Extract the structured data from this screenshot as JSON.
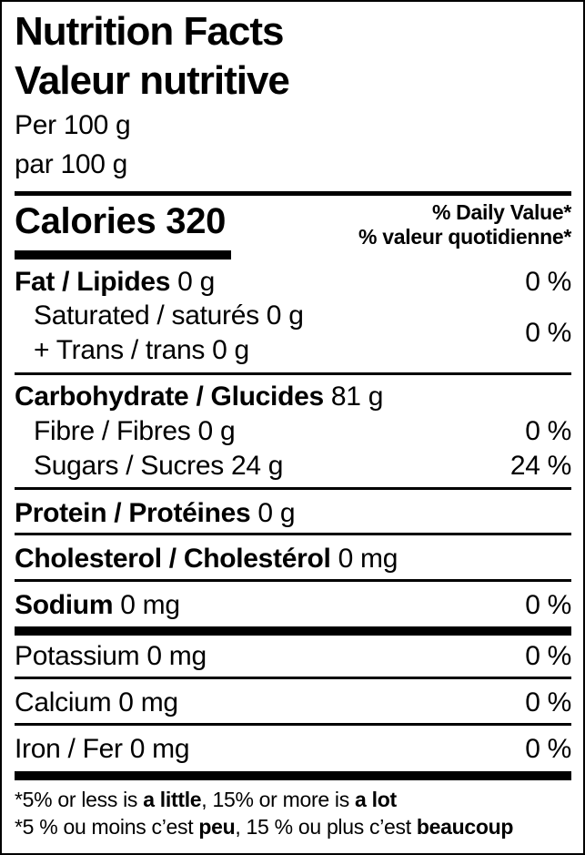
{
  "colors": {
    "text": "#000000",
    "background": "#ffffff"
  },
  "title": {
    "en": "Nutrition Facts",
    "fr": "Valeur nutritive"
  },
  "serving": {
    "en": "Per 100 g",
    "fr": "par 100 g"
  },
  "calories": {
    "text": "Calories 320"
  },
  "dv_header": {
    "en": "% Daily Value*",
    "fr": "% valeur quotidienne*"
  },
  "nutrients": {
    "fat": {
      "name": "Fat / Lipides",
      "amount": "0 g",
      "dv": "0 %"
    },
    "saturated_trans": {
      "line1": "Saturated / saturés 0 g",
      "line2": "+ Trans / trans 0 g",
      "dv": "0 %"
    },
    "carbohydrate": {
      "name": "Carbohydrate / Glucides",
      "amount": "81 g"
    },
    "fibre": {
      "name": "Fibre / Fibres 0 g",
      "dv": "0 %"
    },
    "sugars": {
      "name": "Sugars / Sucres 24 g",
      "dv": "24 %"
    },
    "protein": {
      "name": "Protein / Protéines",
      "amount": "0 g"
    },
    "cholesterol": {
      "name": "Cholesterol / Cholestérol",
      "amount": "0 mg"
    },
    "sodium": {
      "name": "Sodium",
      "amount": "0 mg",
      "dv": "0 %"
    },
    "potassium": {
      "name": "Potassium 0 mg",
      "dv": "0 %"
    },
    "calcium": {
      "name": "Calcium 0 mg",
      "dv": "0 %"
    },
    "iron": {
      "name": "Iron / Fer 0 mg",
      "dv": "0 %"
    }
  },
  "footnote": {
    "en": {
      "pre": "*5% or less is ",
      "bold1": "a little",
      "mid": ", 15% or more is ",
      "bold2": "a lot"
    },
    "fr": {
      "pre": "*5 % ou moins c’est ",
      "bold1": "peu",
      "mid": ", 15 % ou plus c’est ",
      "bold2": "beaucoup"
    }
  }
}
